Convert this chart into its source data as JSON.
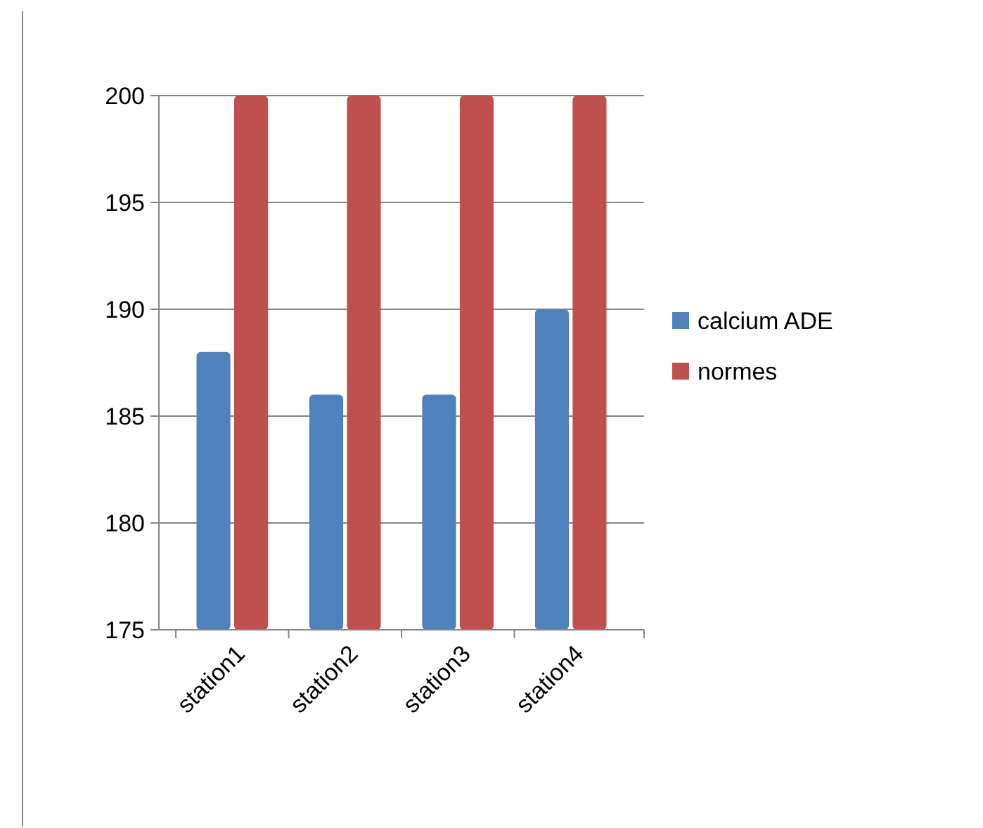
{
  "chart_data": {
    "type": "bar",
    "categories": [
      "station1",
      "station2",
      "station3",
      "station4"
    ],
    "series": [
      {
        "name": "calcium ADE",
        "color": "#4f81bd",
        "values": [
          188,
          186,
          186,
          190
        ]
      },
      {
        "name": "normes",
        "color": "#c0504d",
        "values": [
          200,
          200,
          200,
          200
        ]
      }
    ],
    "ylim": [
      175,
      200
    ],
    "yticks": [
      175,
      180,
      185,
      190,
      195,
      200
    ],
    "grid": "y",
    "legend": "right"
  }
}
